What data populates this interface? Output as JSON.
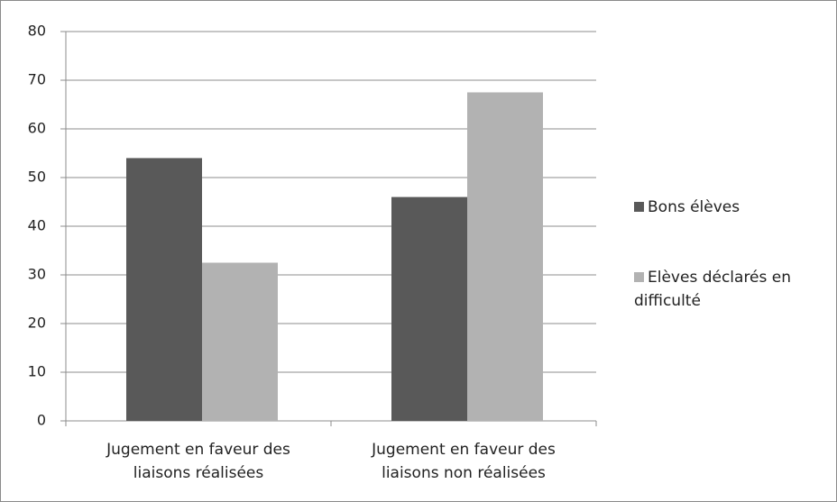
{
  "chart_data": {
    "type": "bar",
    "categories": [
      "Jugement en faveur des liaisons réalisées",
      "Jugement en faveur des liaisons non réalisées"
    ],
    "series": [
      {
        "name": "Bons élèves",
        "color": "#595959",
        "values": [
          54,
          46
        ]
      },
      {
        "name": "Elèves déclarés en difficulté",
        "color": "#b2b2b2",
        "values": [
          32.5,
          67.5
        ]
      }
    ],
    "ylim": [
      0,
      80
    ],
    "yticks": [
      0,
      10,
      20,
      30,
      40,
      50,
      60,
      70,
      80
    ],
    "grid": true,
    "legend": "right"
  }
}
